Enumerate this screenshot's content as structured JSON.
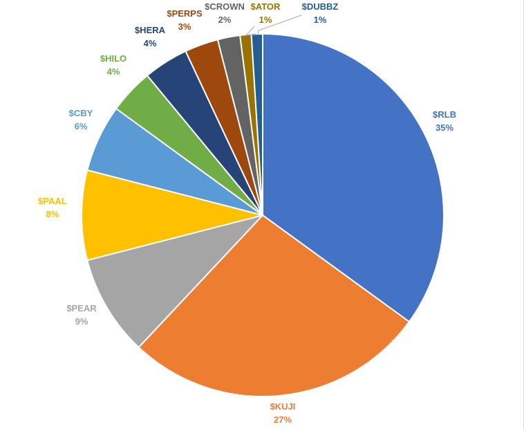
{
  "chart_data": {
    "type": "pie",
    "title": "",
    "start_angle_deg": 0,
    "direction": "clockwise",
    "slices": [
      {
        "label": "$RLB",
        "value": 35,
        "display": "35%",
        "color": "#4472C4",
        "label_color": "#4472C4"
      },
      {
        "label": "$KUJI",
        "value": 27,
        "display": "27%",
        "color": "#ED7D31",
        "label_color": "#ED7D31"
      },
      {
        "label": "$PEAR",
        "value": 9,
        "display": "9%",
        "color": "#A5A5A5",
        "label_color": "#A5A5A5"
      },
      {
        "label": "$PAAL",
        "value": 8,
        "display": "8%",
        "color": "#FFC000",
        "label_color": "#FFC000"
      },
      {
        "label": "$CBY",
        "value": 6,
        "display": "6%",
        "color": "#5B9BD5",
        "label_color": "#5B9BD5"
      },
      {
        "label": "$HILO",
        "value": 4,
        "display": "4%",
        "color": "#70AD47",
        "label_color": "#70AD47"
      },
      {
        "label": "$HERA",
        "value": 4,
        "display": "4%",
        "color": "#264478",
        "label_color": "#264478"
      },
      {
        "label": "$PERPS",
        "value": 3,
        "display": "3%",
        "color": "#9E480E",
        "label_color": "#9E480E"
      },
      {
        "label": "$CROWN",
        "value": 2,
        "display": "2%",
        "color": "#636363",
        "label_color": "#636363"
      },
      {
        "label": "$ATOR",
        "value": 1,
        "display": "1%",
        "color": "#997300",
        "label_color": "#997300"
      },
      {
        "label": "$DUBBZ",
        "value": 1,
        "display": "1%",
        "color": "#255E91",
        "label_color": "#255E91"
      }
    ]
  }
}
